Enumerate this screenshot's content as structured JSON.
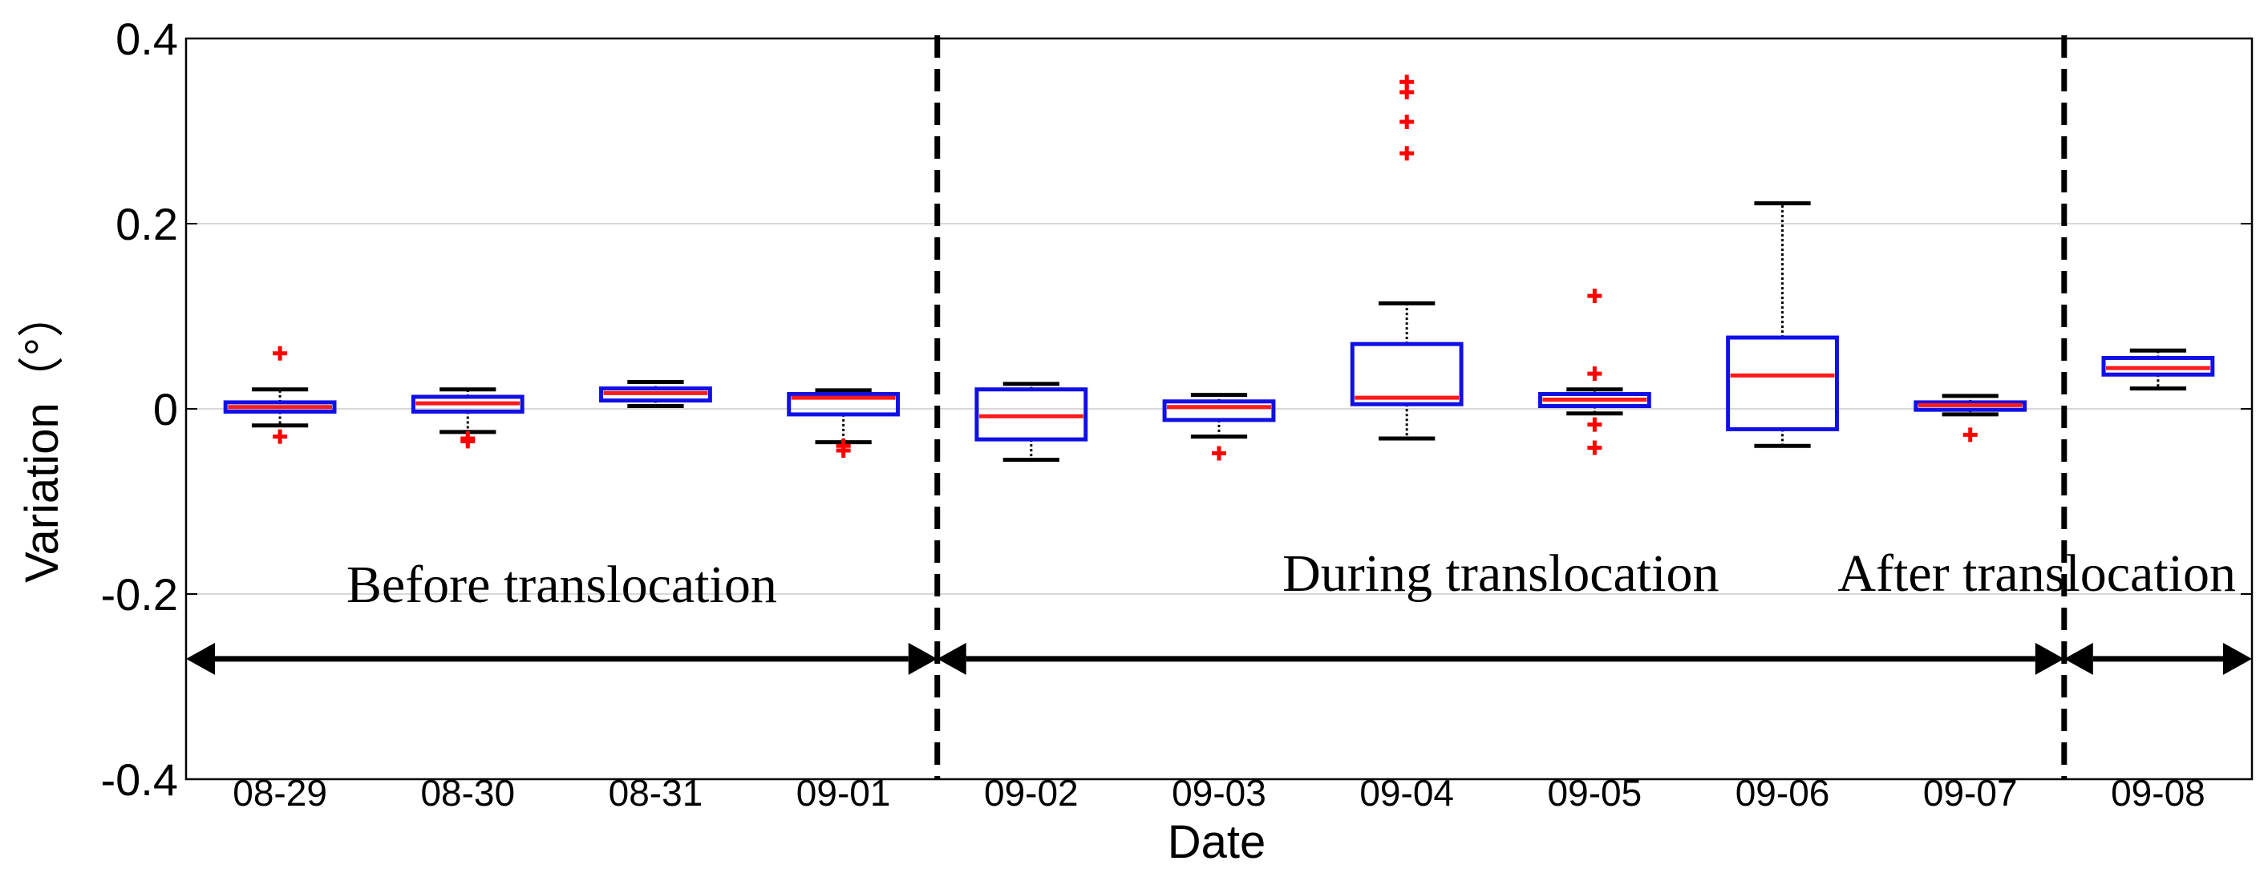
{
  "chart_data": {
    "type": "box",
    "title": "",
    "xlabel": "Date",
    "ylabel": "Variation（°）",
    "ylim": [
      -0.4,
      0.4
    ],
    "yticks": [
      0.4,
      0.2,
      0,
      -0.2,
      -0.4
    ],
    "ytick_labels": [
      "0.4",
      "0.2",
      "0",
      "-0.2",
      "-0.4"
    ],
    "grid": "horizontal",
    "categories": [
      "08-29",
      "08-30",
      "08-31",
      "09-01",
      "09-02",
      "09-03",
      "09-04",
      "09-05",
      "09-06",
      "09-07",
      "09-08"
    ],
    "boxes": [
      {
        "date": "08-29",
        "whisker_low": -0.018,
        "q1": -0.003,
        "median": 0.002,
        "q3": 0.007,
        "whisker_high": 0.021,
        "outliers": [
          0.06,
          -0.03
        ]
      },
      {
        "date": "08-30",
        "whisker_low": -0.025,
        "q1": -0.003,
        "median": 0.006,
        "q3": 0.013,
        "whisker_high": 0.021,
        "outliers": [
          -0.032,
          -0.035
        ]
      },
      {
        "date": "08-31",
        "whisker_low": 0.003,
        "q1": 0.009,
        "median": 0.017,
        "q3": 0.022,
        "whisker_high": 0.029,
        "outliers": []
      },
      {
        "date": "09-01",
        "whisker_low": -0.036,
        "q1": -0.006,
        "median": 0.012,
        "q3": 0.016,
        "whisker_high": 0.02,
        "outliers": [
          -0.04,
          -0.045
        ]
      },
      {
        "date": "09-02",
        "whisker_low": -0.055,
        "q1": -0.033,
        "median": -0.008,
        "q3": 0.021,
        "whisker_high": 0.027,
        "outliers": []
      },
      {
        "date": "09-03",
        "whisker_low": -0.03,
        "q1": -0.012,
        "median": 0.002,
        "q3": 0.008,
        "whisker_high": 0.015,
        "outliers": [
          -0.048
        ]
      },
      {
        "date": "09-04",
        "whisker_low": -0.032,
        "q1": 0.005,
        "median": 0.012,
        "q3": 0.07,
        "whisker_high": 0.114,
        "outliers": [
          0.353,
          0.342,
          0.31,
          0.276
        ]
      },
      {
        "date": "09-05",
        "whisker_low": -0.005,
        "q1": 0.003,
        "median": 0.01,
        "q3": 0.016,
        "whisker_high": 0.021,
        "outliers": [
          0.122,
          0.038,
          -0.017,
          -0.042
        ]
      },
      {
        "date": "09-06",
        "whisker_low": -0.04,
        "q1": -0.022,
        "median": 0.036,
        "q3": 0.077,
        "whisker_high": 0.222,
        "outliers": []
      },
      {
        "date": "09-07",
        "whisker_low": -0.006,
        "q1": -0.001,
        "median": 0.004,
        "q3": 0.007,
        "whisker_high": 0.014,
        "outliers": [
          -0.028
        ]
      },
      {
        "date": "09-08",
        "whisker_low": 0.022,
        "q1": 0.037,
        "median": 0.044,
        "q3": 0.055,
        "whisker_high": 0.063,
        "outliers": []
      }
    ],
    "period_dividers_after": [
      "09-01",
      "09-07"
    ],
    "annotations": [
      {
        "name": "annotation-before",
        "text": "Before translocation",
        "from": "08-29",
        "to": "09-01"
      },
      {
        "name": "annotation-during",
        "text": "During translocation",
        "from": "09-02",
        "to": "09-07"
      },
      {
        "name": "annotation-after",
        "text": "After translocation",
        "from": "09-08",
        "to": "09-08"
      }
    ],
    "colors": {
      "box": "#1010e6",
      "median": "#ff1a1a",
      "outlier": "#ff0000",
      "whisker": "#000000",
      "grid": "#d8d8d8"
    }
  }
}
